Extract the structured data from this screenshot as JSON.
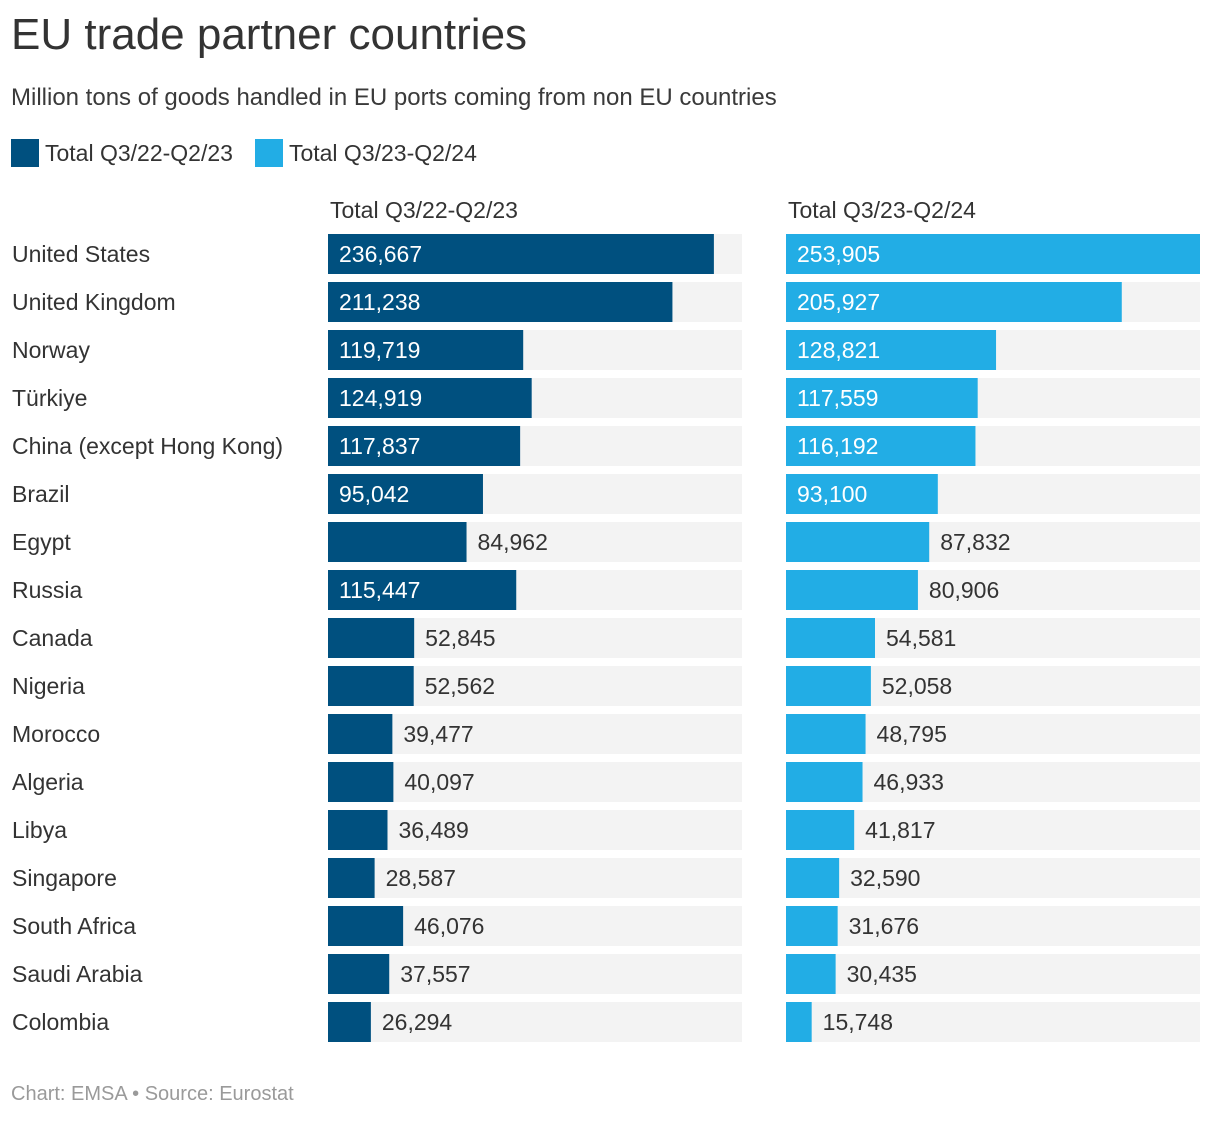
{
  "title": "EU trade partner countries",
  "subtitle": "Million tons of goods handled in EU ports coming from non EU countries",
  "footer": "Chart: EMSA • Source: Eurostat",
  "colors": {
    "series1": "#00507f",
    "series2": "#22ade5",
    "track": "#f3f3f3",
    "label_dark": "#333333",
    "label_light": "#ffffff"
  },
  "legend": [
    {
      "label": "Total Q3/22-Q2/23",
      "color": "#00507f"
    },
    {
      "label": "Total Q3/23-Q2/24",
      "color": "#22ade5"
    }
  ],
  "chart_data": {
    "type": "bar",
    "orientation": "horizontal",
    "layout": "small-multiples",
    "title": "EU trade partner countries",
    "subtitle": "Million tons of goods handled in EU ports coming from non EU countries",
    "categories": [
      "United States",
      "United Kingdom",
      "Norway",
      "Türkiye",
      "China (except Hong Kong)",
      "Brazil",
      "Egypt",
      "Russia",
      "Canada",
      "Nigeria",
      "Morocco",
      "Algeria",
      "Libya",
      "Singapore",
      "South Africa",
      "Saudi Arabia",
      "Colombia"
    ],
    "series": [
      {
        "name": "Total Q3/22-Q2/23",
        "color": "#00507f",
        "values": [
          236667,
          211238,
          119719,
          124919,
          117837,
          95042,
          84962,
          115447,
          52845,
          52562,
          39477,
          40097,
          36489,
          28587,
          46076,
          37557,
          26294
        ]
      },
      {
        "name": "Total Q3/23-Q2/24",
        "color": "#22ade5",
        "values": [
          253905,
          205927,
          128821,
          117559,
          116192,
          93100,
          87832,
          80906,
          54581,
          52058,
          48795,
          46933,
          41817,
          32590,
          31676,
          30435,
          15748
        ]
      }
    ],
    "xlim": [
      0,
      253905
    ],
    "grid": false,
    "legend": "top-left"
  }
}
